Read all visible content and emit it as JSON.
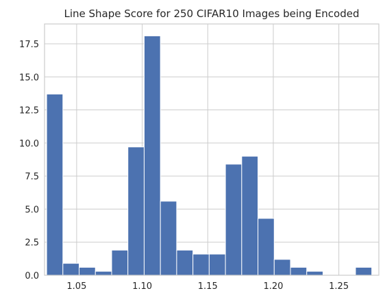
{
  "chart_data": {
    "type": "bar",
    "title": "Line Shape Score for 250 CIFAR10 Images being Encoded",
    "xlabel": "",
    "ylabel": "",
    "xlim": [
      1.0255,
      1.2805
    ],
    "ylim": [
      0,
      19
    ],
    "xticks": [
      1.05,
      1.1,
      1.15,
      1.2,
      1.25
    ],
    "xtick_labels": [
      "1.05",
      "1.10",
      "1.15",
      "1.20",
      "1.25"
    ],
    "yticks": [
      0.0,
      2.5,
      5.0,
      7.5,
      10.0,
      12.5,
      15.0,
      17.5
    ],
    "ytick_labels": [
      "0.0",
      "2.5",
      "5.0",
      "7.5",
      "10.0",
      "12.5",
      "15.0",
      "17.5"
    ],
    "bin_edges": [
      1.0271,
      1.0395,
      1.0519,
      1.0643,
      1.0767,
      1.0891,
      1.1015,
      1.1139,
      1.1263,
      1.1387,
      1.1511,
      1.1635,
      1.1759,
      1.1883,
      1.2007,
      1.2131,
      1.2255,
      1.2379,
      1.2503,
      1.2627,
      1.2751
    ],
    "values": [
      13.7,
      0.9,
      0.6,
      0.3,
      1.9,
      9.7,
      18.1,
      5.6,
      1.9,
      1.6,
      1.6,
      8.4,
      9.0,
      4.3,
      1.2,
      0.6,
      0.3,
      0.0,
      0.0,
      0.6
    ],
    "grid": true,
    "colors": {
      "bar": "#4c72b0",
      "grid": "#cccccc",
      "frame": "#cccccc"
    }
  }
}
